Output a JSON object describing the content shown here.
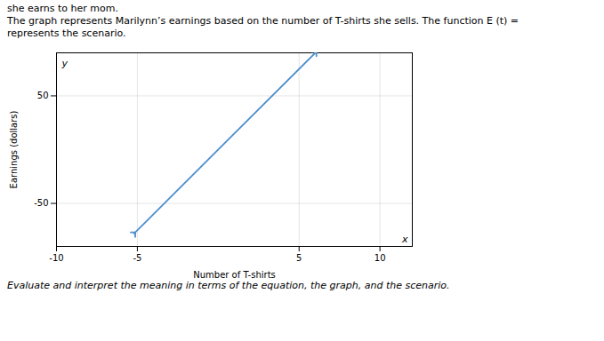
{
  "chart_data": {
    "type": "line",
    "title": "The graph represents Marilynn’s earnings based on the number of T-shirts she sells. The function E (t) =",
    "subtitle": "represents the scenario.",
    "xlabel": "Number of T-shirts",
    "ylabel": "Earnings (dollars)",
    "annotations": [
      "she earns to her mom.",
      "x",
      "y",
      "Evaluate and interpret the meaning in terms of the equation, the graph, and the scenario."
    ],
    "x": [
      -5.2,
      6.0
    ],
    "values": [
      -78,
      90
    ],
    "color": "#4d8fcc",
    "marker": "arrow",
    "xlim": [
      -10,
      12
    ],
    "xticks": [
      -10,
      -5,
      5,
      10
    ],
    "ylim": [
      -90,
      90
    ],
    "yticks": [
      -50,
      50
    ],
    "grid": true
  }
}
